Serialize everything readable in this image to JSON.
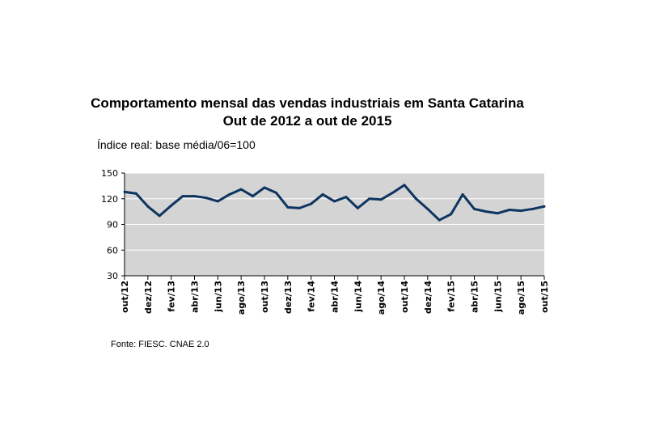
{
  "chart_data": {
    "type": "line",
    "title": "Comportamento mensal das vendas industriais em Santa Catarina",
    "subtitle": "Out de 2012 a out de 2015",
    "ylabel": "Índice real: base média/06=100",
    "source": "Fonte: FIESC. CNAE 2.0",
    "ylim": [
      30,
      150
    ],
    "yticks": [
      30,
      60,
      90,
      120,
      150
    ],
    "grid": true,
    "line_color": "#0e3460",
    "background": "#d4d4d4",
    "xtick_labels": [
      "out/12",
      "dez/12",
      "fev/13",
      "abr/13",
      "jun/13",
      "ago/13",
      "out/13",
      "dez/13",
      "fev/14",
      "abr/14",
      "jun/14",
      "ago/14",
      "out/14",
      "dez/14",
      "fev/15",
      "abr/15",
      "jun/15",
      "ago/15",
      "out/15"
    ],
    "values": [
      128,
      126,
      111,
      100,
      112,
      123,
      123,
      121,
      117,
      125,
      131,
      123,
      133,
      127,
      110,
      109,
      114,
      125,
      117,
      122,
      109,
      120,
      119,
      127,
      136,
      120,
      108,
      95,
      102,
      125,
      108,
      105,
      103,
      107,
      106,
      108,
      111
    ]
  }
}
